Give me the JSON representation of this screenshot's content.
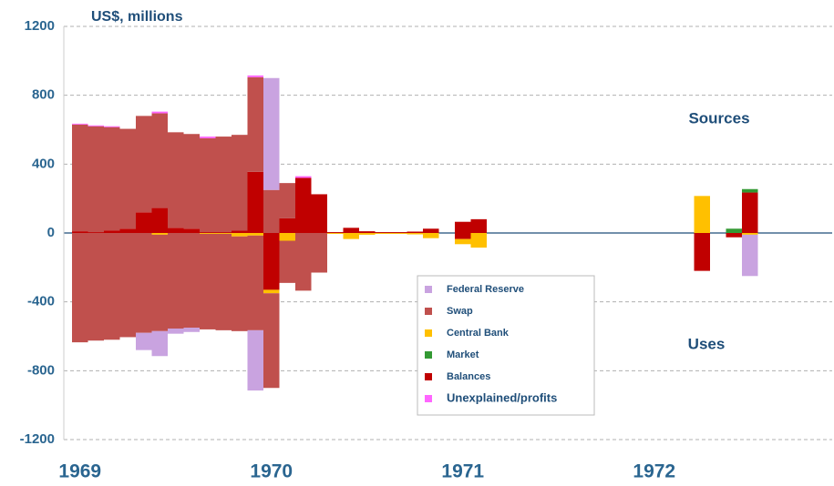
{
  "chart_data": {
    "type": "bar",
    "stacked": true,
    "y_label": "US$, millions",
    "annotations": [
      "Sources",
      "Uses"
    ],
    "categories": [
      "1969",
      null,
      null,
      null,
      null,
      null,
      null,
      null,
      null,
      null,
      null,
      null,
      "1970",
      null,
      null,
      null,
      null,
      null,
      null,
      null,
      null,
      null,
      null,
      null,
      "1971",
      null,
      null,
      null,
      null,
      null,
      null,
      null,
      null,
      null,
      null,
      null,
      "1972",
      null,
      null,
      null,
      null,
      null,
      null,
      null,
      null,
      null,
      null,
      null
    ],
    "ylim": [
      -1200,
      1200
    ],
    "yticks": [
      -1200,
      -800,
      -400,
      0,
      400,
      800,
      1200
    ],
    "grid": true,
    "series": [
      {
        "name": "Federal Reserve",
        "color": "#c9a3e0",
        "sources": [
          0,
          0,
          0,
          0,
          0,
          0,
          0,
          0,
          0,
          0,
          0,
          0,
          650,
          0,
          0,
          0,
          0,
          0,
          0,
          0,
          0,
          0,
          0,
          0,
          0,
          0,
          0,
          0,
          0,
          0,
          0,
          0,
          0,
          0,
          0,
          0,
          0,
          0,
          0,
          0,
          0,
          0,
          0,
          0,
          0,
          0,
          0,
          0
        ],
        "uses": [
          0,
          0,
          0,
          0,
          -100,
          -145,
          -30,
          -25,
          0,
          0,
          0,
          -350,
          0,
          0,
          0,
          0,
          0,
          0,
          0,
          0,
          0,
          0,
          0,
          0,
          0,
          0,
          0,
          0,
          0,
          0,
          0,
          0,
          0,
          0,
          0,
          0,
          0,
          0,
          0,
          0,
          0,
          0,
          -240,
          0,
          0,
          0,
          0,
          0
        ]
      },
      {
        "name": "Swap",
        "color": "#c0504d",
        "sources": [
          620,
          615,
          600,
          580,
          560,
          550,
          555,
          550,
          545,
          555,
          555,
          550,
          250,
          205,
          0,
          0,
          0,
          0,
          0,
          0,
          0,
          0,
          0,
          0,
          0,
          0,
          0,
          0,
          0,
          0,
          0,
          0,
          0,
          0,
          0,
          0,
          0,
          0,
          0,
          0,
          0,
          0,
          0,
          0,
          0,
          0,
          0,
          0
        ],
        "uses": [
          -635,
          -625,
          -620,
          -605,
          -580,
          -560,
          -555,
          -550,
          -555,
          -560,
          -550,
          -550,
          -550,
          -245,
          -335,
          -230,
          0,
          0,
          0,
          0,
          0,
          0,
          0,
          0,
          0,
          0,
          0,
          0,
          0,
          0,
          0,
          0,
          0,
          0,
          0,
          0,
          0,
          0,
          0,
          0,
          0,
          0,
          0,
          0,
          0,
          0,
          0,
          0
        ]
      },
      {
        "name": "Central Bank",
        "color": "#ffc000",
        "sources": [
          0,
          0,
          0,
          0,
          0,
          0,
          0,
          0,
          0,
          0,
          0,
          0,
          0,
          0,
          0,
          0,
          0,
          0,
          0,
          0,
          0,
          0,
          0,
          0,
          0,
          0,
          0,
          0,
          0,
          0,
          0,
          0,
          0,
          0,
          0,
          0,
          0,
          0,
          0,
          215,
          0,
          0,
          0,
          0,
          0,
          0,
          0,
          0
        ],
        "uses": [
          0,
          0,
          0,
          0,
          0,
          -10,
          0,
          0,
          -5,
          -5,
          -20,
          -15,
          -20,
          -45,
          0,
          0,
          -5,
          -35,
          -10,
          -5,
          -5,
          -8,
          -30,
          0,
          -30,
          -85,
          0,
          0,
          0,
          0,
          0,
          0,
          0,
          0,
          0,
          0,
          0,
          0,
          0,
          0,
          0,
          0,
          -10,
          0,
          0,
          0,
          0,
          0
        ]
      },
      {
        "name": "Market",
        "color": "#339933",
        "sources": [
          0,
          0,
          0,
          0,
          0,
          0,
          0,
          0,
          0,
          0,
          0,
          0,
          0,
          0,
          0,
          0,
          0,
          0,
          0,
          0,
          0,
          0,
          0,
          0,
          0,
          0,
          0,
          0,
          0,
          0,
          0,
          0,
          0,
          0,
          0,
          0,
          0,
          0,
          0,
          0,
          0,
          25,
          20,
          0,
          0,
          0,
          0,
          0
        ],
        "uses": [
          0,
          0,
          0,
          0,
          0,
          0,
          0,
          0,
          0,
          0,
          0,
          0,
          0,
          0,
          0,
          0,
          0,
          0,
          0,
          0,
          0,
          0,
          0,
          0,
          0,
          0,
          0,
          0,
          0,
          0,
          0,
          0,
          0,
          0,
          0,
          0,
          0,
          0,
          0,
          0,
          0,
          0,
          0,
          0,
          0,
          0,
          0,
          0
        ]
      },
      {
        "name": "Balances",
        "color": "#c00000",
        "sources": [
          10,
          5,
          15,
          25,
          120,
          145,
          30,
          25,
          5,
          5,
          15,
          355,
          0,
          85,
          320,
          225,
          5,
          30,
          10,
          5,
          5,
          8,
          25,
          0,
          65,
          80,
          0,
          0,
          0,
          0,
          0,
          0,
          0,
          0,
          0,
          0,
          0,
          0,
          0,
          0,
          0,
          0,
          235,
          0,
          0,
          0,
          0,
          0
        ],
        "uses": [
          0,
          0,
          0,
          0,
          0,
          0,
          0,
          0,
          0,
          0,
          0,
          0,
          -330,
          0,
          0,
          0,
          0,
          0,
          0,
          0,
          0,
          0,
          0,
          0,
          -35,
          0,
          0,
          0,
          0,
          0,
          0,
          0,
          0,
          0,
          0,
          0,
          0,
          0,
          0,
          -220,
          0,
          -25,
          0,
          0,
          0,
          0,
          0,
          0
        ]
      },
      {
        "name": "Unexplained/profits",
        "color": "#ff66ff",
        "sources": [
          5,
          5,
          5,
          0,
          0,
          10,
          0,
          0,
          10,
          0,
          0,
          10,
          0,
          0,
          10,
          0,
          0,
          0,
          0,
          0,
          0,
          0,
          0,
          0,
          0,
          0,
          0,
          0,
          0,
          0,
          0,
          0,
          0,
          0,
          0,
          0,
          0,
          0,
          0,
          0,
          0,
          0,
          0,
          0,
          0,
          0,
          0,
          0
        ],
        "uses": [
          0,
          0,
          0,
          0,
          0,
          0,
          0,
          0,
          0,
          0,
          0,
          0,
          0,
          0,
          0,
          0,
          0,
          0,
          0,
          0,
          0,
          0,
          0,
          0,
          0,
          0,
          0,
          0,
          0,
          0,
          0,
          0,
          0,
          0,
          0,
          0,
          0,
          0,
          0,
          0,
          0,
          0,
          0,
          0,
          0,
          0,
          0,
          0
        ]
      }
    ]
  }
}
